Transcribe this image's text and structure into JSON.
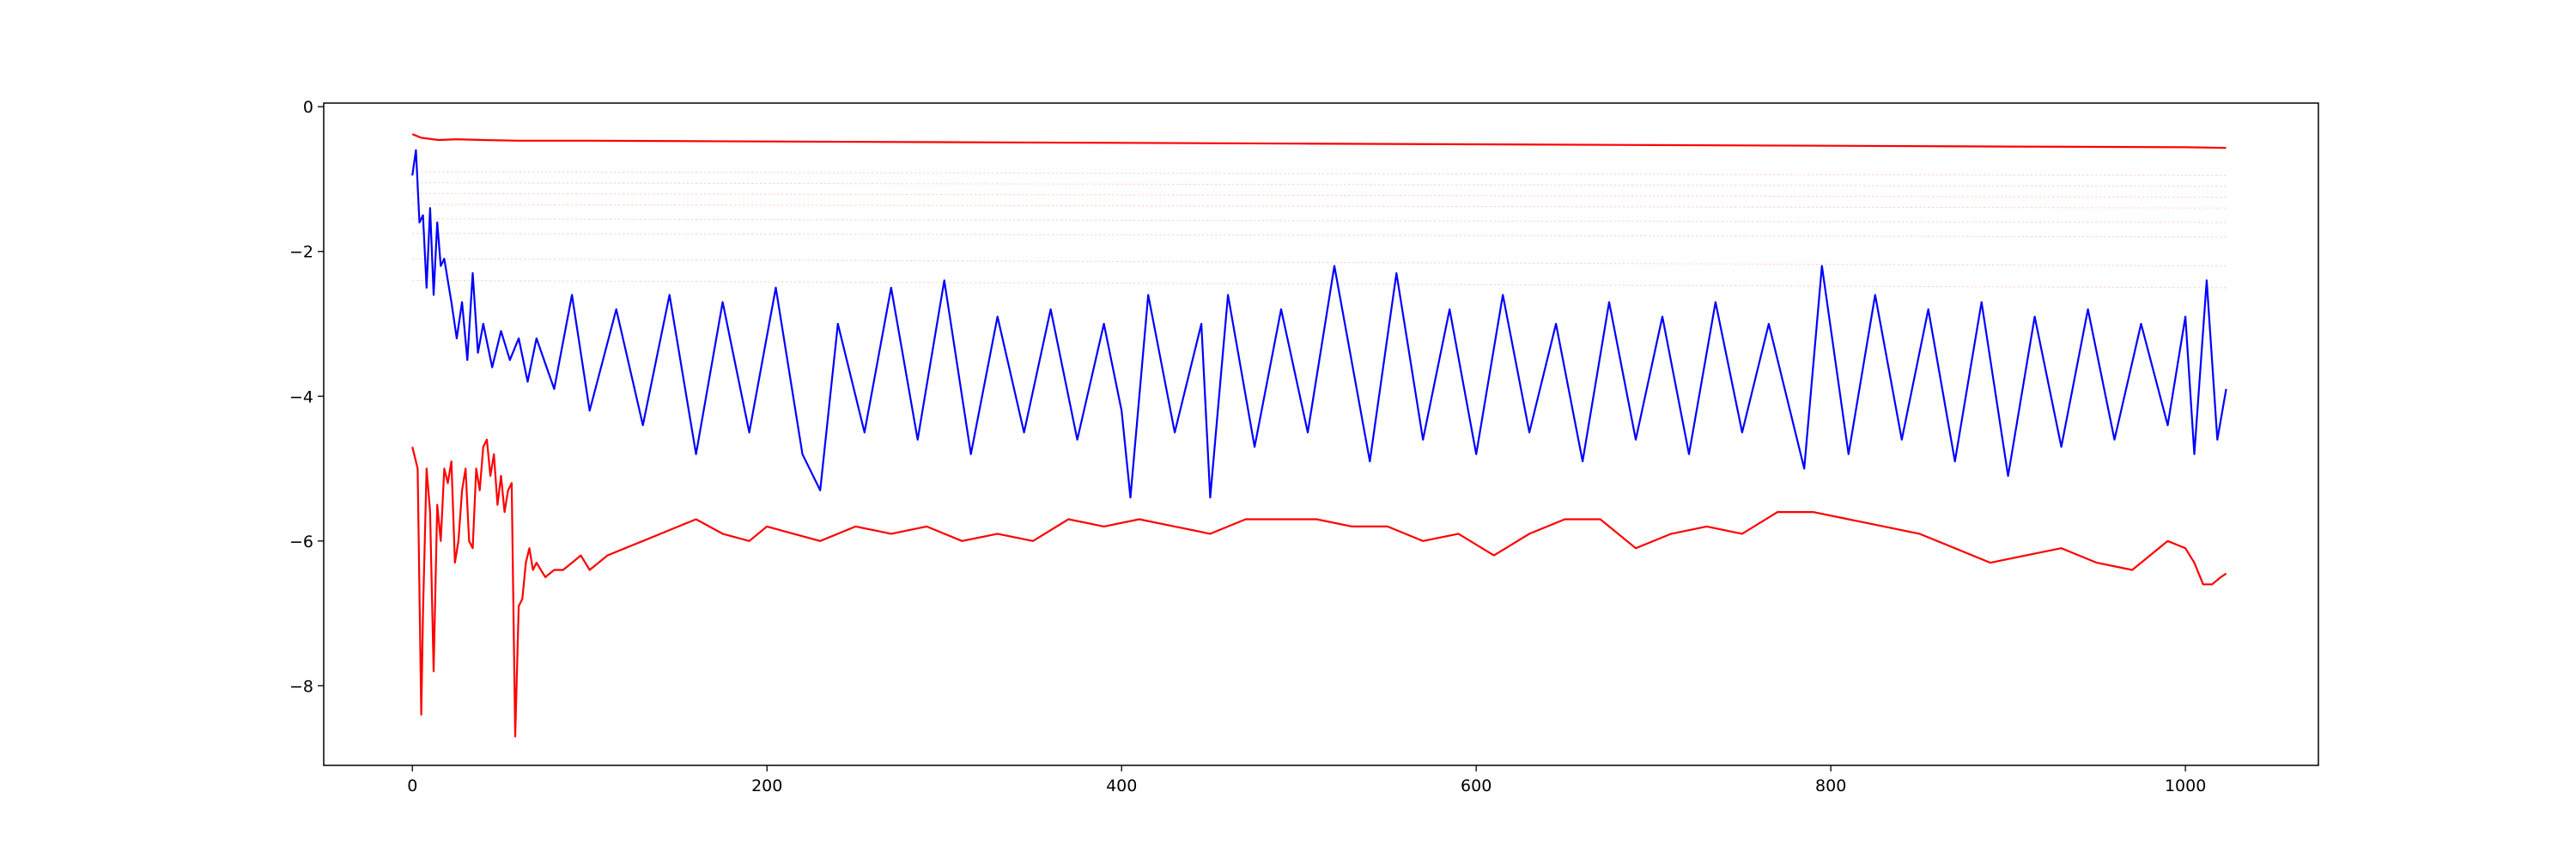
{
  "chart_data": {
    "type": "line",
    "title": "",
    "xlabel": "",
    "ylabel": "",
    "xlim": [
      -50,
      1075
    ],
    "ylim": [
      -9.1,
      0.05
    ],
    "xticks": [
      0,
      200,
      400,
      600,
      800,
      1000
    ],
    "yticks": [
      0,
      -2,
      -4,
      -6,
      -8
    ],
    "grid": false,
    "legend": "none",
    "series": [
      {
        "color": "#ff0000",
        "style": "solid",
        "x": [
          0,
          5,
          15,
          25,
          40,
          60,
          100,
          200,
          300,
          400,
          500,
          600,
          700,
          800,
          900,
          1000,
          1023
        ],
        "y": [
          -0.38,
          -0.43,
          -0.46,
          -0.45,
          -0.46,
          -0.47,
          -0.47,
          -0.48,
          -0.49,
          -0.5,
          -0.51,
          -0.52,
          -0.53,
          -0.54,
          -0.55,
          -0.56,
          -0.57
        ]
      },
      {
        "color": "#0000ff",
        "style": "solid",
        "x": [
          0,
          2,
          4,
          6,
          8,
          10,
          12,
          14,
          16,
          18,
          20,
          22,
          25,
          28,
          31,
          34,
          37,
          40,
          45,
          50,
          55,
          60,
          65,
          70,
          80,
          90,
          100,
          115,
          130,
          145,
          160,
          175,
          190,
          205,
          220,
          230,
          240,
          255,
          270,
          285,
          300,
          315,
          330,
          345,
          360,
          375,
          390,
          400,
          405,
          415,
          430,
          445,
          450,
          460,
          475,
          490,
          505,
          520,
          540,
          555,
          570,
          585,
          600,
          615,
          630,
          645,
          660,
          675,
          690,
          705,
          720,
          735,
          750,
          765,
          785,
          795,
          810,
          825,
          840,
          855,
          870,
          885,
          900,
          915,
          930,
          945,
          960,
          975,
          990,
          1000,
          1005,
          1012,
          1018,
          1023
        ],
        "y": [
          -0.95,
          -0.6,
          -1.6,
          -1.5,
          -2.5,
          -1.4,
          -2.6,
          -1.6,
          -2.2,
          -2.1,
          -2.4,
          -2.7,
          -3.2,
          -2.7,
          -3.5,
          -2.3,
          -3.4,
          -3.0,
          -3.6,
          -3.1,
          -3.5,
          -3.2,
          -3.8,
          -3.2,
          -3.9,
          -2.6,
          -4.2,
          -2.8,
          -4.4,
          -2.6,
          -4.8,
          -2.7,
          -4.5,
          -2.5,
          -4.8,
          -5.3,
          -3.0,
          -4.5,
          -2.5,
          -4.6,
          -2.4,
          -4.8,
          -2.9,
          -4.5,
          -2.8,
          -4.6,
          -3.0,
          -4.2,
          -5.4,
          -2.6,
          -4.5,
          -3.0,
          -5.4,
          -2.6,
          -4.7,
          -2.8,
          -4.5,
          -2.2,
          -4.9,
          -2.3,
          -4.6,
          -2.8,
          -4.8,
          -2.6,
          -4.5,
          -3.0,
          -4.9,
          -2.7,
          -4.6,
          -2.9,
          -4.8,
          -2.7,
          -4.5,
          -3.0,
          -5.0,
          -2.2,
          -4.8,
          -2.6,
          -4.6,
          -2.8,
          -4.9,
          -2.7,
          -5.1,
          -2.9,
          -4.7,
          -2.8,
          -4.6,
          -3.0,
          -4.4,
          -2.9,
          -4.8,
          -2.4,
          -4.6,
          -3.9
        ]
      },
      {
        "color": "#ff0000",
        "style": "solid",
        "x": [
          0,
          3,
          5,
          6,
          8,
          10,
          12,
          14,
          16,
          18,
          20,
          22,
          24,
          26,
          28,
          30,
          32,
          34,
          36,
          38,
          40,
          42,
          44,
          46,
          48,
          50,
          52,
          54,
          56,
          58,
          60,
          62,
          64,
          66,
          68,
          70,
          75,
          80,
          85,
          90,
          95,
          100,
          110,
          120,
          130,
          140,
          150,
          160,
          175,
          190,
          200,
          215,
          230,
          250,
          270,
          290,
          310,
          330,
          350,
          370,
          390,
          410,
          430,
          450,
          470,
          490,
          510,
          530,
          550,
          570,
          590,
          610,
          630,
          650,
          670,
          690,
          710,
          730,
          750,
          770,
          790,
          810,
          830,
          850,
          870,
          890,
          910,
          930,
          950,
          970,
          990,
          1000,
          1005,
          1010,
          1015,
          1020,
          1023
        ],
        "y": [
          -4.7,
          -5.0,
          -8.4,
          -7.0,
          -5.0,
          -5.6,
          -7.8,
          -5.5,
          -6.0,
          -5.0,
          -5.2,
          -4.9,
          -6.3,
          -6.0,
          -5.3,
          -5.0,
          -6.0,
          -6.1,
          -5.0,
          -5.3,
          -4.7,
          -4.6,
          -5.1,
          -4.8,
          -5.5,
          -5.1,
          -5.6,
          -5.3,
          -5.2,
          -8.7,
          -6.9,
          -6.8,
          -6.3,
          -6.1,
          -6.4,
          -6.3,
          -6.5,
          -6.4,
          -6.4,
          -6.3,
          -6.2,
          -6.4,
          -6.2,
          -6.1,
          -6.0,
          -5.9,
          -5.8,
          -5.7,
          -5.9,
          -6.0,
          -5.8,
          -5.9,
          -6.0,
          -5.8,
          -5.9,
          -5.8,
          -6.0,
          -5.9,
          -6.0,
          -5.7,
          -5.8,
          -5.7,
          -5.8,
          -5.9,
          -5.7,
          -5.7,
          -5.7,
          -5.8,
          -5.8,
          -6.0,
          -5.9,
          -6.2,
          -5.9,
          -5.7,
          -5.7,
          -6.1,
          -5.9,
          -5.8,
          -5.9,
          -5.6,
          -5.6,
          -5.7,
          -5.8,
          -5.9,
          -6.1,
          -6.3,
          -6.2,
          -6.1,
          -6.3,
          -6.4,
          -6.0,
          -6.1,
          -6.3,
          -6.6,
          -6.6,
          -6.5,
          -6.45
        ]
      },
      {
        "color": "#ff8c8c",
        "style": "faint",
        "x": [
          0,
          1023
        ],
        "y": [
          -0.9,
          -0.95
        ]
      },
      {
        "color": "#ff8c8c",
        "style": "faint",
        "x": [
          0,
          1023
        ],
        "y": [
          -1.05,
          -1.1
        ]
      },
      {
        "color": "#ff8c8c",
        "style": "faint",
        "x": [
          0,
          1023
        ],
        "y": [
          -1.2,
          -1.25
        ]
      },
      {
        "color": "#ff8c8c",
        "style": "faint",
        "x": [
          0,
          1023
        ],
        "y": [
          -1.35,
          -1.4
        ]
      },
      {
        "color": "#ff8c8c",
        "style": "faint",
        "x": [
          0,
          1023
        ],
        "y": [
          -1.55,
          -1.6
        ]
      },
      {
        "color": "#ff8c8c",
        "style": "faint",
        "x": [
          0,
          1023
        ],
        "y": [
          -1.75,
          -1.8
        ]
      },
      {
        "color": "#ff8c8c",
        "style": "faint",
        "x": [
          0,
          1023
        ],
        "y": [
          -2.1,
          -2.2
        ]
      },
      {
        "color": "#ff8c8c",
        "style": "faint",
        "x": [
          0,
          1023
        ],
        "y": [
          -2.4,
          -2.5
        ]
      }
    ]
  }
}
